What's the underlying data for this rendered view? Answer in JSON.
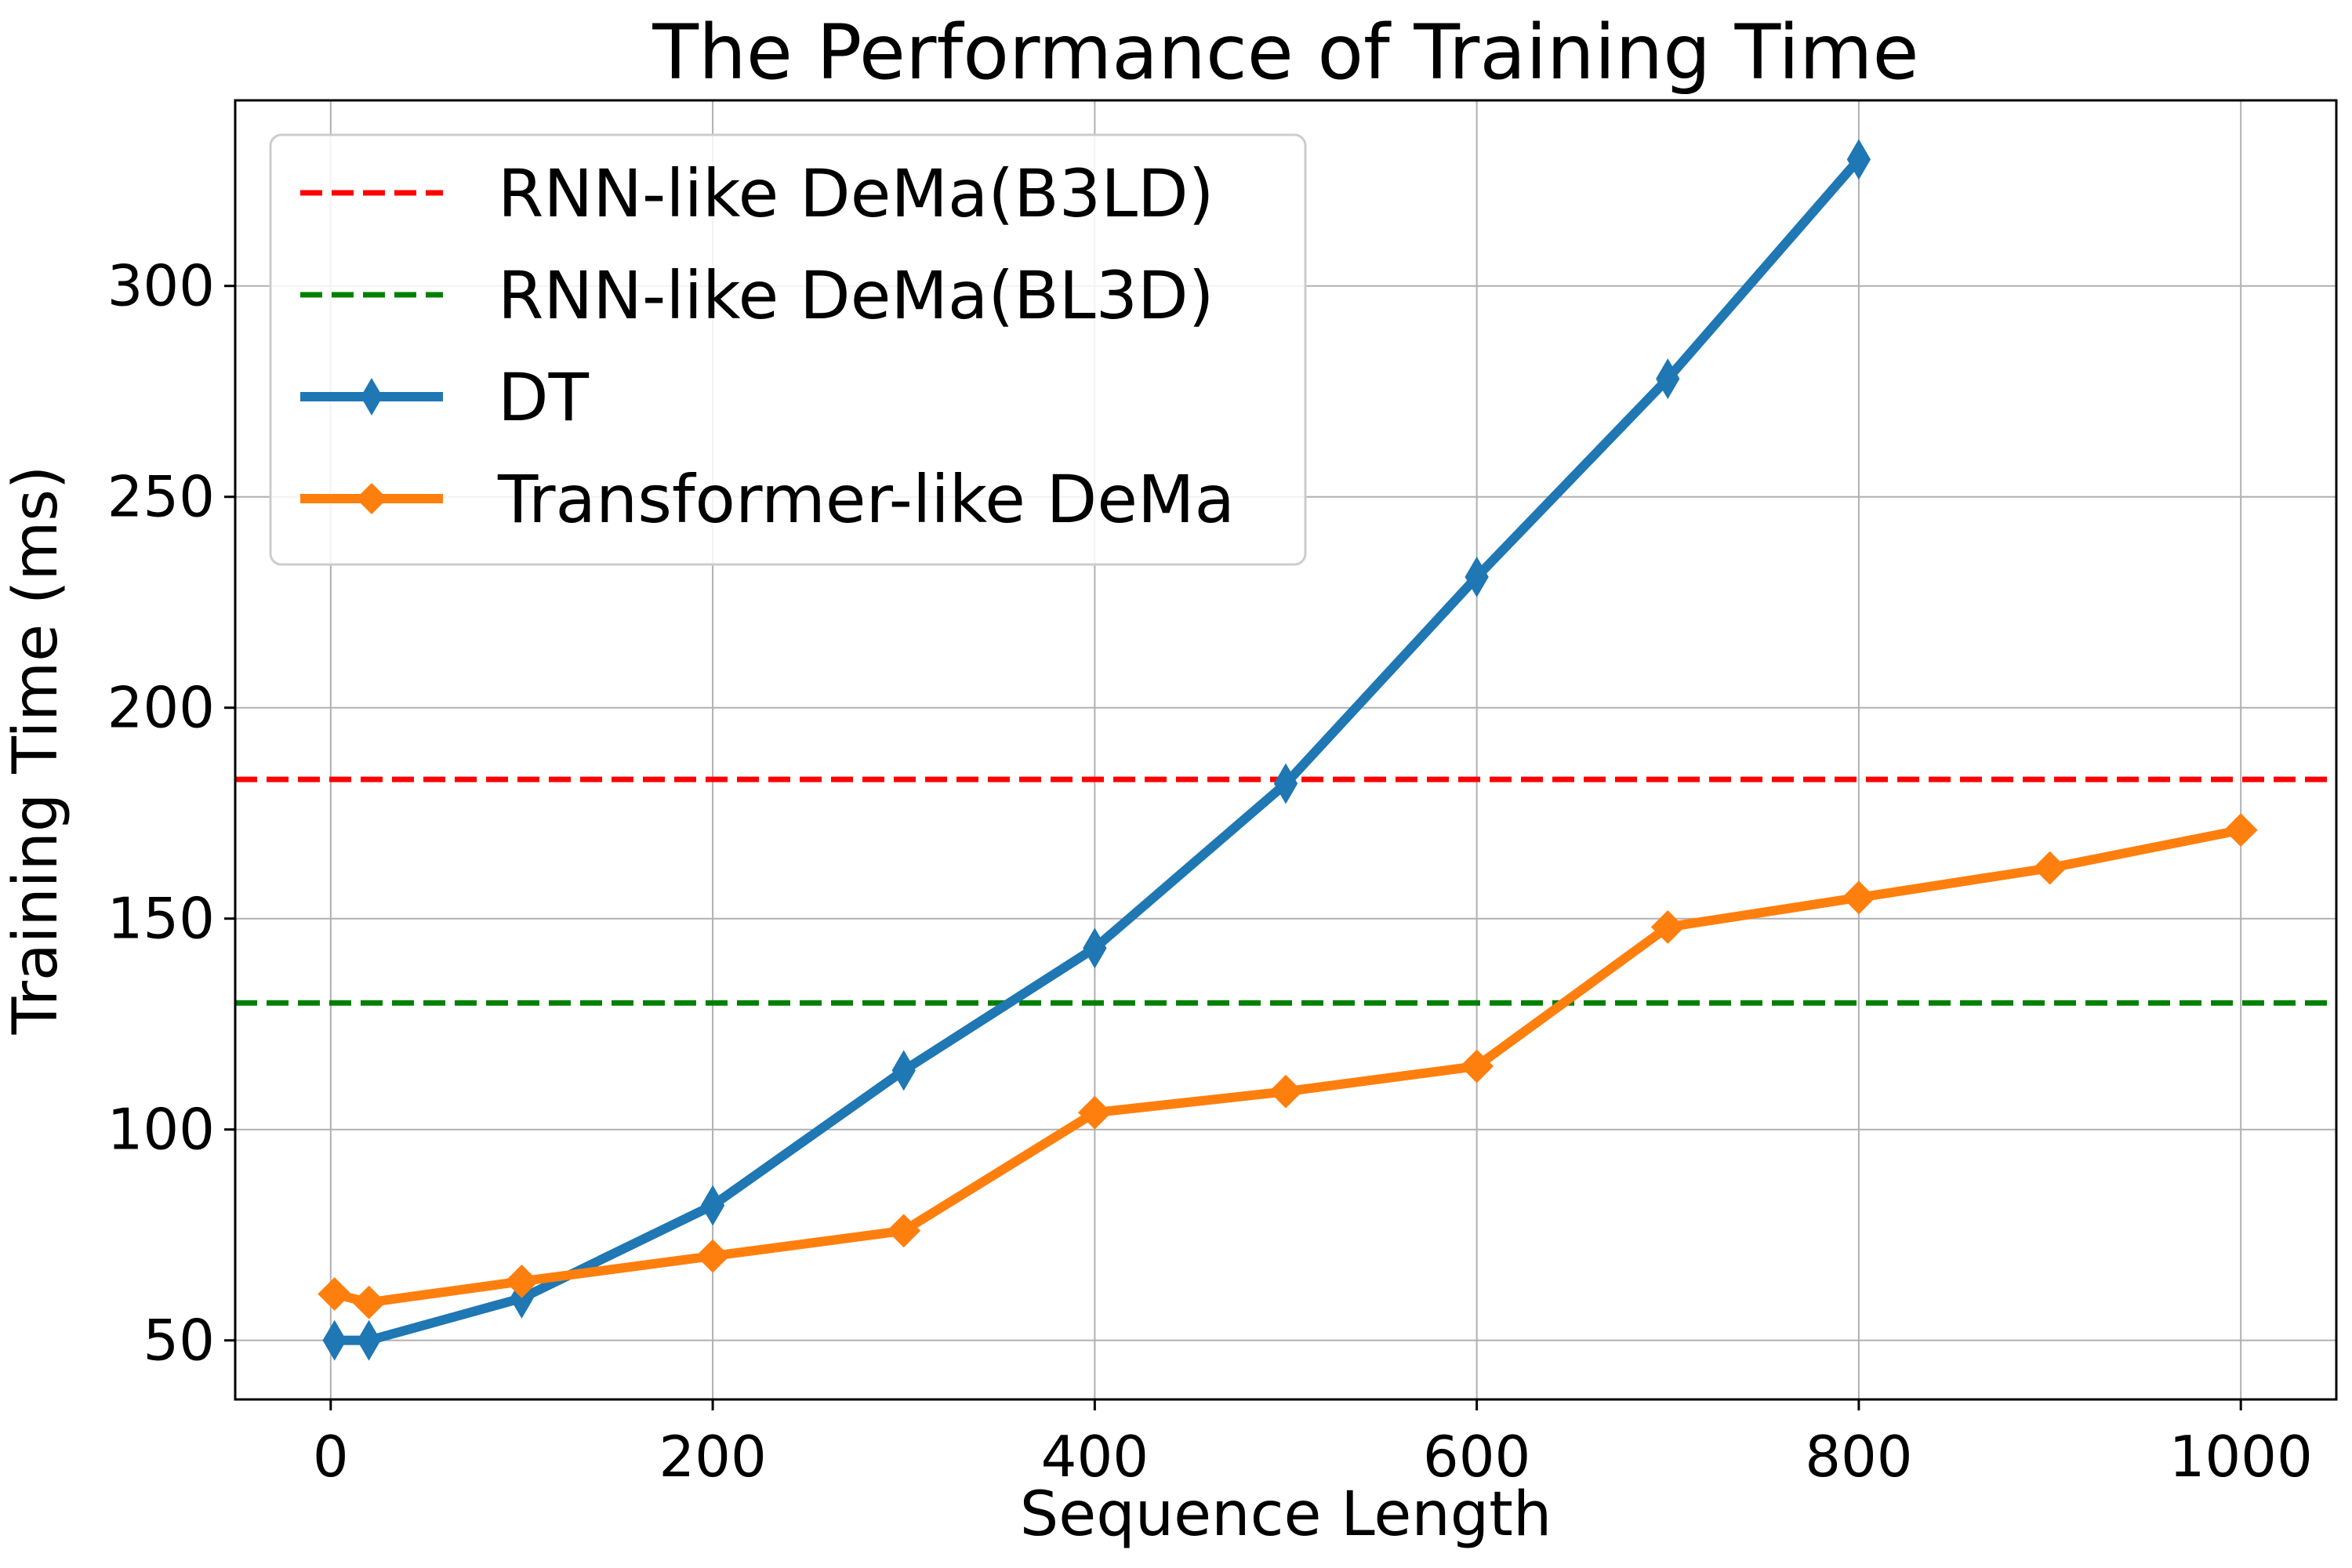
{
  "chart_data": {
    "type": "line",
    "title": "The Performance of Training Time",
    "xlabel": "Sequence Length",
    "ylabel": "Training Time (ms)",
    "xlim": [
      -50,
      1050
    ],
    "ylim": [
      36,
      344
    ],
    "xticks": [
      0,
      200,
      400,
      600,
      800,
      1000
    ],
    "yticks": [
      50,
      100,
      150,
      200,
      250,
      300
    ],
    "grid": true,
    "legend_position": "upper-left",
    "reference_lines": [
      {
        "name": "RNN-like DeMa(B3LD)",
        "y": 183,
        "color": "#ff0000",
        "style": "dashed"
      },
      {
        "name": "RNN-like DeMa(BL3D)",
        "y": 130,
        "color": "#008000",
        "style": "dashed"
      }
    ],
    "series": [
      {
        "name": "DT",
        "color": "#1f77b4",
        "marker": "thin-diamond",
        "x": [
          2,
          20,
          100,
          200,
          300,
          400,
          500,
          600,
          700,
          800
        ],
        "y": [
          50,
          50,
          60,
          82,
          114,
          143,
          182,
          231,
          278,
          330
        ]
      },
      {
        "name": "Transformer-like DeMa",
        "color": "#ff7f0e",
        "marker": "diamond",
        "x": [
          2,
          20,
          100,
          200,
          300,
          400,
          500,
          600,
          700,
          800,
          900,
          1000
        ],
        "y": [
          61,
          59,
          64,
          70,
          76,
          104,
          109,
          115,
          148,
          155,
          162,
          171
        ]
      }
    ]
  }
}
